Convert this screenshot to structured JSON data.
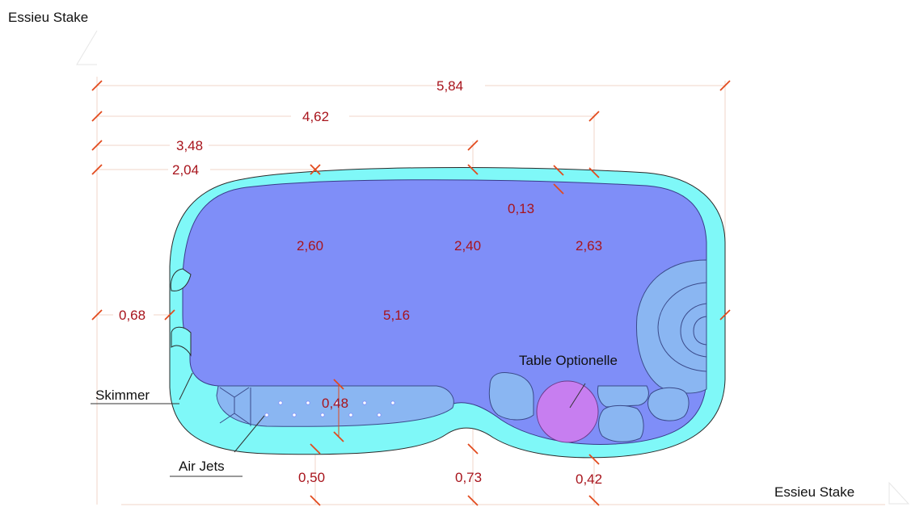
{
  "stake_labels": {
    "top_left": "Essieu Stake",
    "bottom_right": "Essieu Stake"
  },
  "dimensions": {
    "overall_length": "5,84",
    "to_third_section": "4,62",
    "to_second_section": "3,48",
    "to_first_section": "2,04",
    "wall_thickness": "0,13",
    "end_step_width": "0,68",
    "width_at_first_section": "2,60",
    "width_at_second_section": "2,40",
    "width_at_third_section": "2,63",
    "inner_length": "5,16",
    "bench_depth": "0,48",
    "bench_section_1": "0,50",
    "bench_section_2": "0,73",
    "bench_section_3": "0,42"
  },
  "labels": {
    "table": "Table Optionelle",
    "skimmer": "Skimmer",
    "air_jets": "Air Jets"
  },
  "colors": {
    "coping": "#7ff8f8",
    "pool_water": "#7f8ef8",
    "bench": "#8ab6f2",
    "optional_table": "#c77ef0",
    "dimension_text": "#a8141c",
    "dimension_tick": "#e24a1c",
    "guide_line": "#f2d6c8"
  }
}
